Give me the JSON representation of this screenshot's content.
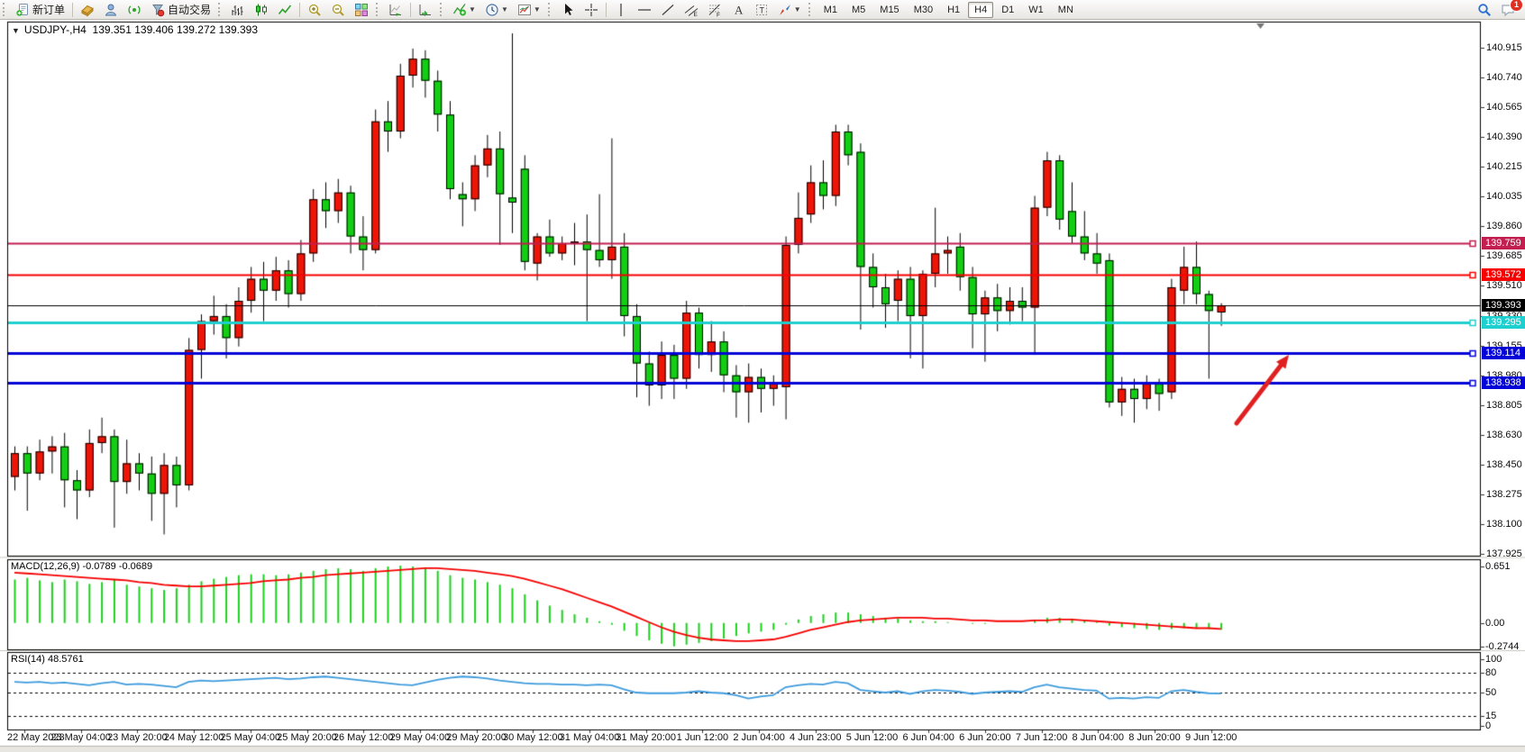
{
  "toolbar": {
    "items": [
      {
        "type": "grip"
      },
      {
        "type": "button",
        "name": "new-order-button",
        "icon": "new-order",
        "label": "新订单"
      },
      {
        "type": "sep"
      },
      {
        "type": "button",
        "name": "styles-button",
        "icon": "styles"
      },
      {
        "type": "button",
        "name": "community-button",
        "icon": "community"
      },
      {
        "type": "button",
        "name": "signals-button",
        "icon": "signals"
      },
      {
        "type": "button",
        "name": "autotrade-button",
        "icon": "autotrade",
        "label": "自动交易"
      },
      {
        "type": "grip"
      },
      {
        "type": "button",
        "name": "bar-chart-button",
        "icon": "bars"
      },
      {
        "type": "button",
        "name": "candle-chart-button",
        "icon": "candles"
      },
      {
        "type": "button",
        "name": "line-chart-button",
        "icon": "linechart"
      },
      {
        "type": "sep"
      },
      {
        "type": "button",
        "name": "zoom-in-button",
        "icon": "zoom-in"
      },
      {
        "type": "button",
        "name": "zoom-out-button",
        "icon": "zoom-out"
      },
      {
        "type": "button",
        "name": "tile-windows-button",
        "icon": "tiles"
      },
      {
        "type": "grip"
      },
      {
        "type": "button",
        "name": "auto-scroll-button",
        "icon": "autoscroll"
      },
      {
        "type": "sep"
      },
      {
        "type": "button",
        "name": "chart-shift-button",
        "icon": "chartshift"
      },
      {
        "type": "grip"
      },
      {
        "type": "button",
        "name": "indicators-button",
        "icon": "indicators",
        "dropdown": true
      },
      {
        "type": "button",
        "name": "periods-button",
        "icon": "clock",
        "dropdown": true
      },
      {
        "type": "button",
        "name": "templates-button",
        "icon": "template",
        "dropdown": true
      },
      {
        "type": "grip"
      },
      {
        "type": "button",
        "name": "cursor-button",
        "icon": "cursor"
      },
      {
        "type": "button",
        "name": "crosshair-button",
        "icon": "crosshair"
      },
      {
        "type": "sep"
      },
      {
        "type": "button",
        "name": "vertical-line-button",
        "icon": "vline"
      },
      {
        "type": "button",
        "name": "horizontal-line-button",
        "icon": "hline"
      },
      {
        "type": "button",
        "name": "trendline-button",
        "icon": "trendline"
      },
      {
        "type": "button",
        "name": "equidistant-channel-button",
        "icon": "channel"
      },
      {
        "type": "button",
        "name": "fibonacci-button",
        "icon": "fibo"
      },
      {
        "type": "button",
        "name": "text-button",
        "icon": "text-a"
      },
      {
        "type": "button",
        "name": "text-label-button",
        "icon": "text-t"
      },
      {
        "type": "button",
        "name": "arrows-button",
        "icon": "arrows",
        "dropdown": true
      },
      {
        "type": "grip"
      }
    ],
    "timeframes": [
      {
        "label": "M1"
      },
      {
        "label": "M5"
      },
      {
        "label": "M15"
      },
      {
        "label": "M30"
      },
      {
        "label": "H1"
      },
      {
        "label": "H4",
        "active": true
      },
      {
        "label": "D1"
      },
      {
        "label": "W1"
      },
      {
        "label": "MN"
      }
    ],
    "right_items": [
      {
        "name": "search-button",
        "icon": "search"
      },
      {
        "name": "chat-button",
        "icon": "chat",
        "badge": "1"
      }
    ]
  },
  "chart_title": {
    "collapse_icon": "▼",
    "symbol": "USDJPY-,H4",
    "ohlc": "139.351 139.406 139.272 139.393"
  },
  "chart_data": {
    "type": "candlestick",
    "symbol": "USDJPY-",
    "timeframe": "H4",
    "up_color": "#ee1507",
    "down_color": "#13cf13",
    "wick_color": "#000000",
    "y_ticks": [
      140.915,
      140.74,
      140.565,
      140.39,
      140.215,
      140.035,
      139.86,
      139.685,
      139.51,
      139.33,
      139.155,
      138.98,
      138.805,
      138.63,
      138.45,
      138.275,
      138.1,
      137.925
    ],
    "y_tick_labels": [
      "140.915",
      "140.740",
      "140.565",
      "140.390",
      "140.215",
      "140.035",
      "139.860",
      "139.685",
      "139.510",
      "139.330",
      "139.155",
      "138.980",
      "138.805",
      "138.630",
      "138.450",
      "138.275",
      "138.100",
      "137.925"
    ],
    "price_lines": [
      {
        "price": 139.759,
        "label": "139.759",
        "color": "#c21e50",
        "width": 2
      },
      {
        "price": 139.572,
        "label": "139.572",
        "color": "#f80000",
        "width": 2
      },
      {
        "price": 139.393,
        "label": "139.393",
        "color": "#000000",
        "width": 1,
        "current": true
      },
      {
        "price": 139.295,
        "label": "139.295",
        "color": "#1ecfcf",
        "width": 3
      },
      {
        "price": 139.114,
        "label": "139.114",
        "color": "#0202d8",
        "width": 3
      },
      {
        "price": 138.938,
        "label": "138.938",
        "color": "#0202d8",
        "width": 3
      }
    ],
    "x_labels": [
      "22 May 2023",
      "23 May 04:00",
      "23 May 20:00",
      "24 May 12:00",
      "25 May 04:00",
      "25 May 20:00",
      "26 May 12:00",
      "29 May 04:00",
      "29 May 20:00",
      "30 May 12:00",
      "31 May 04:00",
      "31 May 20:00",
      "1 Jun 12:00",
      "2 Jun 04:00",
      "4 Jun 23:00",
      "5 Jun 12:00",
      "6 Jun 04:00",
      "6 Jun 20:00",
      "7 Jun 12:00",
      "8 Jun 04:00",
      "8 Jun 20:00",
      "9 Jun 12:00"
    ],
    "candles": [
      [
        138.38,
        138.56,
        138.3,
        138.52
      ],
      [
        138.52,
        138.56,
        138.18,
        138.4
      ],
      [
        138.4,
        138.6,
        138.36,
        138.53
      ],
      [
        138.53,
        138.62,
        138.4,
        138.56
      ],
      [
        138.56,
        138.64,
        138.2,
        138.36
      ],
      [
        138.36,
        138.42,
        138.13,
        138.3
      ],
      [
        138.3,
        138.66,
        138.26,
        138.58
      ],
      [
        138.58,
        138.73,
        138.52,
        138.62
      ],
      [
        138.62,
        138.66,
        138.08,
        138.35
      ],
      [
        138.35,
        138.6,
        138.28,
        138.46
      ],
      [
        138.46,
        138.52,
        138.3,
        138.4
      ],
      [
        138.4,
        138.5,
        138.12,
        138.28
      ],
      [
        138.28,
        138.52,
        138.04,
        138.45
      ],
      [
        138.45,
        138.5,
        138.2,
        138.33
      ],
      [
        138.33,
        139.2,
        138.3,
        139.13
      ],
      [
        139.13,
        139.34,
        138.96,
        139.3
      ],
      [
        139.3,
        139.45,
        139.22,
        139.33
      ],
      [
        139.33,
        139.4,
        139.08,
        139.2
      ],
      [
        139.2,
        139.5,
        139.15,
        139.42
      ],
      [
        139.42,
        139.62,
        139.35,
        139.55
      ],
      [
        139.55,
        139.65,
        139.3,
        139.48
      ],
      [
        139.48,
        139.68,
        139.42,
        139.6
      ],
      [
        139.6,
        139.66,
        139.38,
        139.46
      ],
      [
        139.46,
        139.78,
        139.42,
        139.7
      ],
      [
        139.7,
        140.08,
        139.65,
        140.02
      ],
      [
        140.02,
        140.12,
        139.85,
        139.95
      ],
      [
        139.95,
        140.14,
        139.88,
        140.06
      ],
      [
        140.06,
        140.1,
        139.7,
        139.8
      ],
      [
        139.8,
        139.92,
        139.6,
        139.72
      ],
      [
        139.72,
        140.55,
        139.7,
        140.48
      ],
      [
        140.48,
        140.6,
        140.3,
        140.42
      ],
      [
        140.42,
        140.82,
        140.38,
        140.75
      ],
      [
        140.75,
        140.91,
        140.68,
        140.85
      ],
      [
        140.85,
        140.9,
        140.62,
        140.72
      ],
      [
        140.72,
        140.78,
        140.42,
        140.52
      ],
      [
        140.52,
        140.6,
        140.02,
        140.08
      ],
      [
        140.05,
        140.12,
        139.86,
        140.02
      ],
      [
        140.02,
        140.28,
        139.95,
        140.22
      ],
      [
        140.22,
        140.4,
        140.15,
        140.32
      ],
      [
        140.32,
        140.42,
        139.75,
        140.05
      ],
      [
        140.03,
        141.0,
        139.82,
        140.0
      ],
      [
        140.2,
        140.28,
        139.6,
        139.65
      ],
      [
        139.64,
        139.82,
        139.54,
        139.8
      ],
      [
        139.8,
        139.9,
        139.68,
        139.7
      ],
      [
        139.7,
        139.8,
        139.66,
        139.76
      ],
      [
        139.76,
        139.88,
        139.63,
        139.77
      ],
      [
        139.77,
        139.93,
        139.3,
        139.72
      ],
      [
        139.72,
        140.05,
        139.62,
        139.66
      ],
      [
        139.66,
        140.38,
        139.55,
        139.74
      ],
      [
        139.74,
        139.82,
        139.21,
        139.33
      ],
      [
        139.33,
        139.4,
        138.85,
        139.05
      ],
      [
        139.05,
        139.12,
        138.8,
        138.92
      ],
      [
        138.92,
        139.18,
        138.84,
        139.1
      ],
      [
        139.1,
        139.16,
        138.84,
        138.96
      ],
      [
        138.96,
        139.42,
        138.9,
        139.35
      ],
      [
        139.35,
        139.38,
        139.02,
        139.1
      ],
      [
        139.1,
        139.3,
        139.0,
        139.18
      ],
      [
        139.18,
        139.24,
        138.88,
        138.98
      ],
      [
        138.98,
        139.04,
        138.73,
        138.88
      ],
      [
        138.88,
        139.05,
        138.7,
        138.97
      ],
      [
        138.97,
        139.02,
        138.76,
        138.9
      ],
      [
        138.9,
        138.98,
        138.8,
        138.93
      ],
      [
        138.91,
        139.8,
        138.72,
        139.75
      ],
      [
        139.75,
        140.06,
        139.7,
        139.91
      ],
      [
        139.93,
        140.22,
        139.88,
        140.12
      ],
      [
        140.12,
        140.25,
        139.96,
        140.04
      ],
      [
        140.04,
        140.46,
        139.98,
        140.42
      ],
      [
        140.42,
        140.46,
        140.22,
        140.28
      ],
      [
        140.3,
        140.35,
        139.25,
        139.62
      ],
      [
        139.62,
        139.7,
        139.38,
        139.5
      ],
      [
        139.5,
        139.58,
        139.26,
        139.4
      ],
      [
        139.42,
        139.6,
        139.3,
        139.55
      ],
      [
        139.55,
        139.62,
        139.08,
        139.33
      ],
      [
        139.33,
        139.6,
        139.02,
        139.58
      ],
      [
        139.58,
        139.97,
        139.5,
        139.7
      ],
      [
        139.7,
        139.8,
        139.58,
        139.72
      ],
      [
        139.74,
        139.82,
        139.48,
        139.56
      ],
      [
        139.56,
        139.62,
        139.14,
        139.34
      ],
      [
        139.34,
        139.48,
        139.06,
        139.44
      ],
      [
        139.44,
        139.52,
        139.24,
        139.36
      ],
      [
        139.36,
        139.5,
        139.28,
        139.42
      ],
      [
        139.42,
        139.5,
        139.3,
        139.38
      ],
      [
        139.38,
        140.04,
        139.1,
        139.97
      ],
      [
        139.97,
        140.3,
        139.92,
        140.25
      ],
      [
        140.25,
        140.28,
        139.84,
        139.9
      ],
      [
        139.95,
        140.12,
        139.76,
        139.8
      ],
      [
        139.8,
        139.95,
        139.66,
        139.7
      ],
      [
        139.7,
        139.82,
        139.58,
        139.64
      ],
      [
        139.66,
        139.7,
        138.79,
        138.82
      ],
      [
        138.82,
        138.97,
        138.74,
        138.9
      ],
      [
        138.9,
        138.96,
        138.7,
        138.84
      ],
      [
        138.84,
        138.98,
        138.78,
        138.93
      ],
      [
        138.93,
        138.96,
        138.77,
        138.87
      ],
      [
        138.88,
        139.55,
        138.84,
        139.5
      ],
      [
        139.48,
        139.74,
        139.4,
        139.62
      ],
      [
        139.62,
        139.77,
        139.4,
        139.46
      ],
      [
        139.46,
        139.48,
        138.96,
        139.36
      ],
      [
        139.351,
        139.406,
        139.272,
        139.393
      ]
    ]
  },
  "macd": {
    "label": "MACD(12,26,9) -0.0789 -0.0689",
    "axis_labels": [
      {
        "v": 0.651,
        "t": "0.651"
      },
      {
        "v": 0,
        "t": "0.00"
      },
      {
        "v": -0.2744,
        "t": "-0.2744"
      }
    ],
    "hist_color": "#1ad11a",
    "signal_color": "#f80000",
    "histogram": [
      0.5,
      0.52,
      0.49,
      0.47,
      0.5,
      0.48,
      0.45,
      0.47,
      0.5,
      0.44,
      0.42,
      0.4,
      0.38,
      0.4,
      0.44,
      0.48,
      0.51,
      0.53,
      0.55,
      0.56,
      0.56,
      0.55,
      0.56,
      0.58,
      0.6,
      0.62,
      0.63,
      0.62,
      0.6,
      0.63,
      0.65,
      0.66,
      0.65,
      0.64,
      0.6,
      0.55,
      0.52,
      0.5,
      0.47,
      0.44,
      0.4,
      0.33,
      0.26,
      0.2,
      0.15,
      0.1,
      0.06,
      0.02,
      -0.02,
      -0.09,
      -0.15,
      -0.2,
      -0.24,
      -0.27,
      -0.25,
      -0.23,
      -0.21,
      -0.18,
      -0.15,
      -0.12,
      -0.1,
      -0.08,
      -0.02,
      0.04,
      0.08,
      0.1,
      0.12,
      0.12,
      0.1,
      0.08,
      0.06,
      0.05,
      0.03,
      0.02,
      0.02,
      0.01,
      0.0,
      -0.01,
      -0.01,
      0.0,
      0.0,
      0.0,
      0.03,
      0.06,
      0.06,
      0.05,
      0.03,
      0.01,
      -0.03,
      -0.05,
      -0.06,
      -0.07,
      -0.08,
      -0.07,
      -0.06,
      -0.06,
      -0.07,
      -0.0789
    ],
    "signal": [
      0.58,
      0.57,
      0.56,
      0.55,
      0.54,
      0.53,
      0.52,
      0.51,
      0.5,
      0.49,
      0.47,
      0.46,
      0.44,
      0.43,
      0.42,
      0.42,
      0.43,
      0.44,
      0.45,
      0.46,
      0.48,
      0.49,
      0.5,
      0.52,
      0.53,
      0.55,
      0.56,
      0.57,
      0.58,
      0.59,
      0.6,
      0.61,
      0.62,
      0.63,
      0.63,
      0.62,
      0.61,
      0.6,
      0.58,
      0.56,
      0.54,
      0.51,
      0.47,
      0.43,
      0.39,
      0.34,
      0.29,
      0.24,
      0.19,
      0.13,
      0.07,
      0.01,
      -0.05,
      -0.1,
      -0.14,
      -0.17,
      -0.19,
      -0.2,
      -0.21,
      -0.21,
      -0.2,
      -0.19,
      -0.16,
      -0.12,
      -0.08,
      -0.05,
      -0.02,
      0.01,
      0.03,
      0.04,
      0.05,
      0.06,
      0.06,
      0.06,
      0.05,
      0.05,
      0.04,
      0.03,
      0.03,
      0.02,
      0.02,
      0.02,
      0.03,
      0.03,
      0.04,
      0.04,
      0.03,
      0.02,
      0.01,
      0.0,
      -0.01,
      -0.02,
      -0.03,
      -0.04,
      -0.05,
      -0.06,
      -0.06,
      -0.0689
    ]
  },
  "rsi": {
    "label": "RSI(14) 48.5761",
    "color": "#3d9bdd",
    "axis_labels": [
      {
        "v": 100,
        "t": "100"
      },
      {
        "v": 80,
        "t": "80"
      },
      {
        "v": 50,
        "t": "50"
      },
      {
        "v": 15,
        "t": "15"
      },
      {
        "v": 0,
        "t": "0"
      }
    ],
    "levels": [
      80,
      50,
      15
    ],
    "values": [
      66,
      65,
      66,
      64,
      65,
      63,
      61,
      64,
      66,
      62,
      63,
      62,
      60,
      58,
      66,
      68,
      67,
      68,
      69,
      70,
      71,
      72,
      70,
      71,
      73,
      74,
      72,
      70,
      68,
      66,
      64,
      62,
      61,
      65,
      69,
      72,
      74,
      73,
      71,
      68,
      66,
      64,
      63,
      63,
      62,
      62,
      61,
      62,
      61,
      55,
      50,
      49,
      49,
      49,
      50,
      52,
      50,
      49,
      46,
      41,
      44,
      46,
      58,
      61,
      63,
      62,
      66,
      64,
      54,
      52,
      50,
      52,
      48,
      52,
      54,
      53,
      51,
      48,
      50,
      51,
      52,
      51,
      58,
      62,
      58,
      56,
      54,
      53,
      41,
      42,
      41,
      43,
      42,
      52,
      54,
      51,
      49,
      48.5761
    ]
  },
  "annotation": {
    "type": "arrow",
    "color": "#e02020",
    "from": [
      1372,
      470
    ],
    "to": [
      1430,
      394
    ]
  }
}
